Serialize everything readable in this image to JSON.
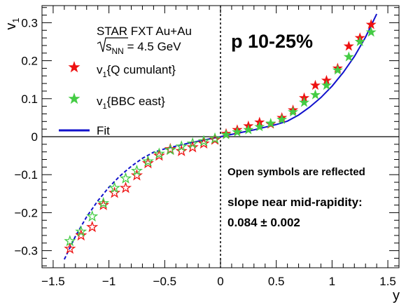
{
  "chart_data": {
    "type": "scatter",
    "xlabel": "y",
    "ylabel": "v1",
    "xlim": [
      -1.6,
      1.6
    ],
    "ylim": [
      -0.345,
      0.345
    ],
    "x_ticks": [
      -1.5,
      -1,
      -0.5,
      0,
      0.5,
      1,
      1.5
    ],
    "x_tick_labels": [
      "−1.5",
      "−1",
      "−0.5",
      "0",
      "0.5",
      "1",
      "1.5"
    ],
    "y_ticks": [
      -0.3,
      -0.2,
      -0.1,
      0,
      0.1,
      0.2,
      0.3
    ],
    "y_tick_labels": [
      "−0.3",
      "−0.2",
      "−0.1",
      "0",
      "0.1",
      "0.2",
      "0.3"
    ],
    "grid": false,
    "legend_position": "top-left",
    "header": {
      "experiment": "STAR FXT Au+Au",
      "energy_prefix": "s",
      "energy_subscript": "NN",
      "energy_value": " = 4.5 GeV",
      "centrality": "p 10-25%"
    },
    "annotations": {
      "reflected_note": "Open symbols are reflected",
      "slope_label": "slope near mid-rapidity:",
      "slope_value": "0.084 ± 0.002"
    },
    "series": [
      {
        "name": "v1{Q cumulant}",
        "legend_main": "v",
        "legend_sub": "1",
        "legend_rest": "{Q cumulant}",
        "color": "#ee1111",
        "marker": "filled-star",
        "x": [
          0.05,
          0.15,
          0.25,
          0.35,
          0.45,
          0.55,
          0.65,
          0.75,
          0.85,
          0.95,
          1.05,
          1.15,
          1.25,
          1.35
        ],
        "y": [
          0.008,
          0.018,
          0.028,
          0.038,
          0.033,
          0.05,
          0.07,
          0.102,
          0.135,
          0.148,
          0.18,
          0.238,
          0.26,
          0.295
        ]
      },
      {
        "name": "v1{BBC east}",
        "legend_main": "v",
        "legend_sub": "1",
        "legend_rest": "{BBC east}",
        "color": "#44cc44",
        "marker": "filled-star",
        "x": [
          0.05,
          0.15,
          0.25,
          0.35,
          0.45,
          0.55,
          0.65,
          0.75,
          0.85,
          0.95,
          1.05,
          1.15,
          1.25,
          1.35
        ],
        "y": [
          0.005,
          0.012,
          0.018,
          0.026,
          0.035,
          0.045,
          0.065,
          0.09,
          0.11,
          0.135,
          0.175,
          0.21,
          0.25,
          0.275
        ]
      },
      {
        "name": "v1{Q cumulant} reflected",
        "color": "#ee1111",
        "marker": "open-star",
        "x": [
          -0.05,
          -0.15,
          -0.25,
          -0.35,
          -0.45,
          -0.55,
          -0.65,
          -0.75,
          -0.85,
          -0.95,
          -1.05,
          -1.15,
          -1.25,
          -1.35
        ],
        "y": [
          -0.008,
          -0.018,
          -0.028,
          -0.038,
          -0.033,
          -0.05,
          -0.07,
          -0.102,
          -0.135,
          -0.148,
          -0.18,
          -0.238,
          -0.26,
          -0.295
        ]
      },
      {
        "name": "v1{BBC east} reflected",
        "color": "#44cc44",
        "marker": "open-star",
        "x": [
          -0.05,
          -0.15,
          -0.25,
          -0.35,
          -0.45,
          -0.55,
          -0.65,
          -0.75,
          -0.85,
          -0.95,
          -1.05,
          -1.15,
          -1.25,
          -1.35
        ],
        "y": [
          -0.005,
          -0.012,
          -0.018,
          -0.026,
          -0.035,
          -0.045,
          -0.065,
          -0.09,
          -0.11,
          -0.135,
          -0.175,
          -0.21,
          -0.25,
          -0.275
        ]
      }
    ],
    "fit": {
      "name": "Fit",
      "color": "#1111cc",
      "x": [
        -1.4,
        -1.3,
        -1.2,
        -1.1,
        -1.0,
        -0.9,
        -0.8,
        -0.7,
        -0.6,
        -0.5,
        -0.4,
        -0.3,
        -0.2,
        -0.1,
        0,
        0.1,
        0.2,
        0.3,
        0.4,
        0.5,
        0.6,
        0.7,
        0.8,
        0.9,
        1.0,
        1.1,
        1.2,
        1.3,
        1.4
      ],
      "y": [
        -0.323,
        -0.262,
        -0.211,
        -0.169,
        -0.133,
        -0.103,
        -0.078,
        -0.057,
        -0.041,
        -0.032,
        -0.025,
        -0.018,
        -0.012,
        -0.006,
        0,
        0.006,
        0.012,
        0.018,
        0.025,
        0.032,
        0.041,
        0.057,
        0.078,
        0.103,
        0.133,
        0.169,
        0.211,
        0.262,
        0.323
      ]
    }
  }
}
